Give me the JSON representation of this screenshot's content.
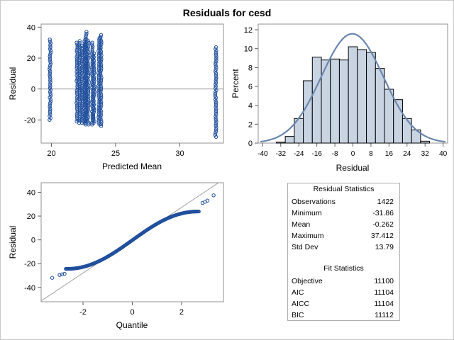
{
  "title": "Residuals for cesd",
  "chart_data": [
    {
      "type": "scatter",
      "xlabel": "Predicted Mean",
      "ylabel": "Residual",
      "xlim": [
        19.2,
        33.4
      ],
      "ylim": [
        -35,
        42
      ],
      "xticks": [
        "20",
        "25",
        "30"
      ],
      "yticks": [
        "40",
        "20",
        "0",
        "-20"
      ],
      "reference_line_y": 0,
      "marker_color": "#1f4e9c",
      "columns": [
        {
          "x": 19.9,
          "ymin": -20,
          "ymax": 32
        },
        {
          "x": 22.0,
          "ymin": -21,
          "ymax": 30
        },
        {
          "x": 22.2,
          "ymin": -22,
          "ymax": 31
        },
        {
          "x": 22.4,
          "ymin": -22,
          "ymax": 28
        },
        {
          "x": 22.6,
          "ymin": -22,
          "ymax": 32
        },
        {
          "x": 22.7,
          "ymin": -23,
          "ymax": 37
        },
        {
          "x": 22.85,
          "ymin": -23,
          "ymax": 31
        },
        {
          "x": 23.2,
          "ymin": -23,
          "ymax": 30
        },
        {
          "x": 23.3,
          "ymin": -22,
          "ymax": 23
        },
        {
          "x": 23.7,
          "ymin": -23,
          "ymax": 33
        },
        {
          "x": 23.85,
          "ymin": -24,
          "ymax": 35
        },
        {
          "x": 32.8,
          "ymin": -31,
          "ymax": 27
        }
      ]
    },
    {
      "type": "bar",
      "xlabel": "Residual",
      "ylabel": "Percent",
      "xlim": [
        -42,
        42
      ],
      "ylim": [
        0,
        12.6
      ],
      "xticks": [
        "-40",
        "-32",
        "-24",
        "-16",
        "-8",
        "0",
        "8",
        "16",
        "24",
        "32",
        "40"
      ],
      "yticks": [
        "12",
        "10",
        "8",
        "6",
        "4",
        "2",
        "0"
      ],
      "bin_width": 4,
      "bin_centers": [
        -32,
        -28,
        -24,
        -20,
        -16,
        -12,
        -8,
        -4,
        0,
        4,
        8,
        12,
        16,
        20,
        24,
        28,
        32
      ],
      "values": [
        0.1,
        0.7,
        2.6,
        6.6,
        9.1,
        8.8,
        8.9,
        8.8,
        10.2,
        9.9,
        9.6,
        7.9,
        5.7,
        4.6,
        2.6,
        1.4,
        0.2
      ],
      "bar_color": "#c9d4e3",
      "curve_color": "#6a86ae",
      "normal_curve": {
        "mean": -0.262,
        "sd": 13.79
      }
    },
    {
      "type": "scatter",
      "xlabel": "Quantile",
      "ylabel": "Residual",
      "xlim": [
        -3.7,
        3.7
      ],
      "ylim": [
        -52,
        48
      ],
      "xticks": [
        "-2",
        "0",
        "2"
      ],
      "yticks": [
        "40",
        "20",
        "0",
        "-20",
        "-40"
      ],
      "reference_line": {
        "intercept": -0.262,
        "slope": 13.79
      },
      "marker_color": "#1f4e9c",
      "outer_points": [
        {
          "x": -3.25,
          "y": -31.9
        },
        {
          "x": -2.95,
          "y": -29.5
        },
        {
          "x": -2.85,
          "y": -29
        },
        {
          "x": -2.75,
          "y": -28.5
        },
        {
          "x": 2.85,
          "y": 31
        },
        {
          "x": 2.95,
          "y": 32
        },
        {
          "x": 3.05,
          "y": 33
        },
        {
          "x": 3.3,
          "y": 37.4
        }
      ]
    }
  ],
  "residual_statistics": {
    "caption": "Residual Statistics",
    "rows": [
      {
        "label": "Observations",
        "value": "1422"
      },
      {
        "label": "Minimum",
        "value": "-31.86"
      },
      {
        "label": "Mean",
        "value": "-0.262"
      },
      {
        "label": "Maximum",
        "value": "37.412"
      },
      {
        "label": "Std Dev",
        "value": "13.79"
      }
    ]
  },
  "fit_statistics": {
    "caption": "Fit Statistics",
    "rows": [
      {
        "label": "Objective",
        "value": "11100"
      },
      {
        "label": "AIC",
        "value": "11104"
      },
      {
        "label": "AICC",
        "value": "11104"
      },
      {
        "label": "BIC",
        "value": "11112"
      }
    ]
  }
}
